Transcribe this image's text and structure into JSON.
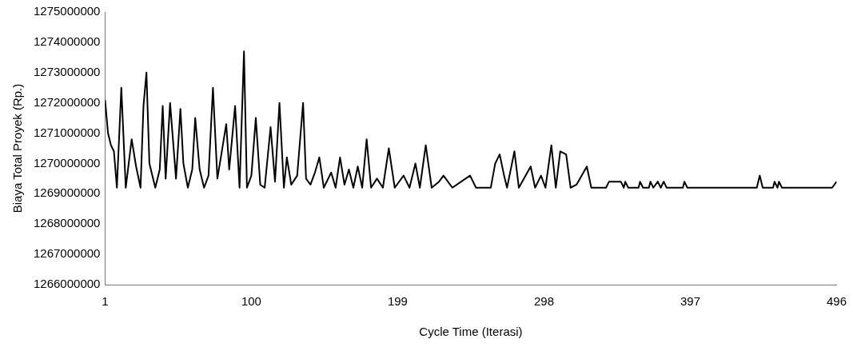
{
  "chart_data": {
    "type": "line",
    "xlabel": "Cycle Time (Iterasi)",
    "ylabel": "Biaya Total Proyek (Rp.)",
    "xlim": [
      1,
      496
    ],
    "xticks": [
      1,
      100,
      199,
      298,
      397,
      496
    ],
    "ylim": [
      1266000000,
      1275000000
    ],
    "yticks": [
      1266000000,
      1267000000,
      1268000000,
      1269000000,
      1270000000,
      1271000000,
      1272000000,
      1273000000,
      1274000000,
      1275000000
    ],
    "marker": "none",
    "line_style": "solid",
    "series": [
      {
        "color": "#000000",
        "x": [
          1,
          3,
          5,
          7,
          9,
          12,
          15,
          19,
          22,
          25,
          27,
          29,
          31,
          35,
          38,
          40,
          42,
          45,
          49,
          52,
          54,
          57,
          60,
          62,
          65,
          68,
          71,
          74,
          77,
          80,
          83,
          85,
          89,
          92,
          95,
          97,
          100,
          103,
          106,
          109,
          113,
          116,
          119,
          122,
          124,
          127,
          131,
          135,
          137,
          140,
          143,
          146,
          149,
          154,
          157,
          160,
          163,
          166,
          169,
          172,
          175,
          178,
          181,
          185,
          189,
          193,
          197,
          203,
          207,
          211,
          214,
          218,
          222,
          227,
          230,
          236,
          242,
          248,
          252,
          262,
          265,
          268,
          271,
          273,
          278,
          281,
          289,
          292,
          296,
          299,
          303,
          306,
          309,
          313,
          316,
          320,
          327,
          330,
          340,
          342,
          350,
          352,
          353,
          355,
          362,
          363,
          365,
          369,
          370,
          372,
          375,
          377,
          379,
          381,
          392,
          393,
          395,
          442,
          444,
          446,
          453,
          454,
          456,
          457,
          459,
          493,
          496
        ],
        "values": [
          1272100000,
          1271000000,
          1270600000,
          1270400000,
          1269200000,
          1272500000,
          1269200000,
          1270800000,
          1269900000,
          1269200000,
          1271900000,
          1273000000,
          1270000000,
          1269200000,
          1269800000,
          1271900000,
          1269500000,
          1272000000,
          1269500000,
          1271800000,
          1270000000,
          1269200000,
          1269800000,
          1271500000,
          1269800000,
          1269200000,
          1269600000,
          1272500000,
          1269500000,
          1270400000,
          1271300000,
          1269800000,
          1271900000,
          1269200000,
          1273700000,
          1269200000,
          1269600000,
          1271500000,
          1269300000,
          1269200000,
          1271200000,
          1269400000,
          1272000000,
          1269200000,
          1270200000,
          1269300000,
          1269600000,
          1272000000,
          1269500000,
          1269300000,
          1269700000,
          1270200000,
          1269200000,
          1269700000,
          1269200000,
          1270200000,
          1269300000,
          1269800000,
          1269200000,
          1269900000,
          1269200000,
          1270800000,
          1269200000,
          1269500000,
          1269200000,
          1270500000,
          1269200000,
          1269600000,
          1269200000,
          1270000000,
          1269200000,
          1270600000,
          1269200000,
          1269400000,
          1269600000,
          1269200000,
          1269400000,
          1269600000,
          1269200000,
          1269200000,
          1270000000,
          1270300000,
          1269600000,
          1269200000,
          1270400000,
          1269200000,
          1269900000,
          1269200000,
          1269600000,
          1269200000,
          1270600000,
          1269200000,
          1270400000,
          1270300000,
          1269200000,
          1269300000,
          1269900000,
          1269200000,
          1269200000,
          1269400000,
          1269400000,
          1269200000,
          1269400000,
          1269200000,
          1269200000,
          1269400000,
          1269200000,
          1269200000,
          1269400000,
          1269200000,
          1269400000,
          1269200000,
          1269400000,
          1269200000,
          1269200000,
          1269400000,
          1269200000,
          1269200000,
          1269600000,
          1269200000,
          1269200000,
          1269400000,
          1269200000,
          1269400000,
          1269200000,
          1269200000,
          1269400000
        ]
      }
    ]
  }
}
